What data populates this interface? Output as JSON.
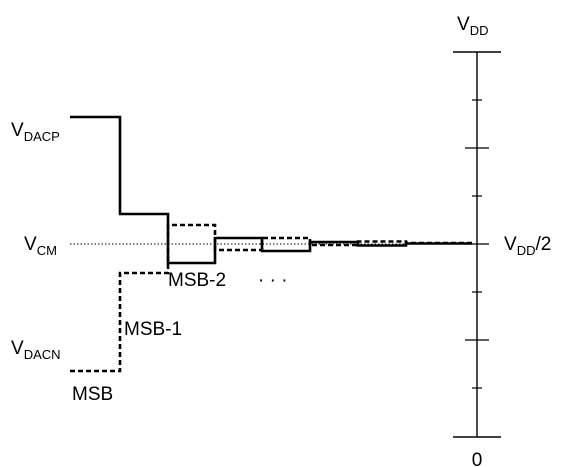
{
  "labels": {
    "vdd": {
      "main": "V",
      "sub": "DD"
    },
    "vdd_half": {
      "main": "V",
      "sub": "DD",
      "suffix": "/2"
    },
    "vdacp": {
      "main": "V",
      "sub": "DACP"
    },
    "vcm": {
      "main": "V",
      "sub": "CM"
    },
    "vdacn": {
      "main": "V",
      "sub": "DACN"
    },
    "zero": "0",
    "msb": "MSB",
    "msb_1": "MSB-1",
    "msb_2": "MSB-2",
    "ellipsis": "· · ·"
  }
}
